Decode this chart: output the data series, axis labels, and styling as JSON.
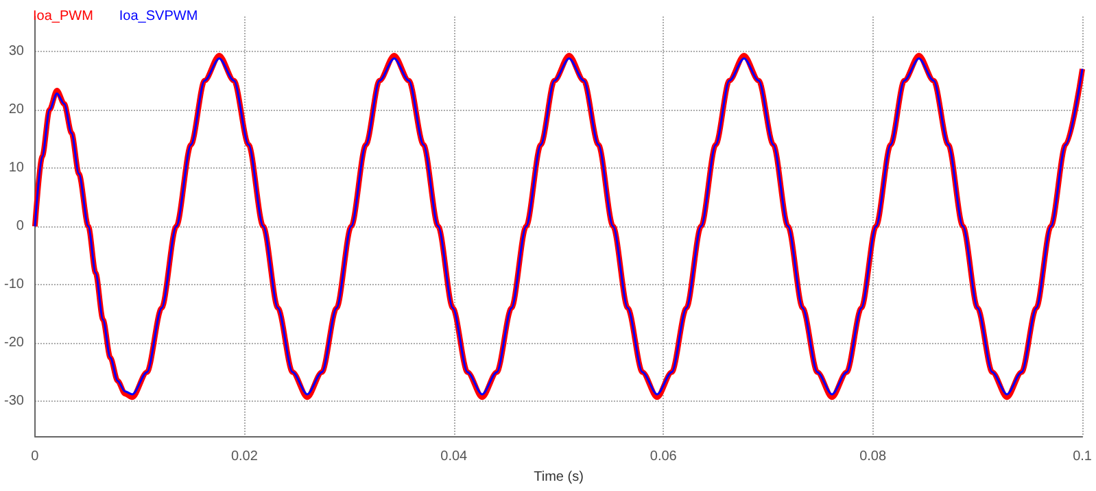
{
  "chart_data": {
    "type": "line",
    "xlabel": "Time (s)",
    "x": [
      0,
      0.0007,
      0.0014,
      0.0021,
      0.0028,
      0.0035,
      0.0042,
      0.0051,
      0.0058,
      0.0065,
      0.0072,
      0.0079,
      0.0086,
      0.0093,
      0.0107,
      0.0121,
      0.0135,
      0.0149,
      0.0162,
      0.0176,
      0.019,
      0.0204,
      0.0218,
      0.0232,
      0.0246,
      0.026,
      0.0274,
      0.0288,
      0.0302,
      0.0316,
      0.0329,
      0.0343,
      0.0357,
      0.0371,
      0.0385,
      0.0399,
      0.0413,
      0.0427,
      0.0441,
      0.0455,
      0.0469,
      0.0483,
      0.0496,
      0.051,
      0.0524,
      0.0538,
      0.0552,
      0.0566,
      0.058,
      0.0594,
      0.0608,
      0.0622,
      0.0636,
      0.065,
      0.0663,
      0.0677,
      0.0691,
      0.0705,
      0.0719,
      0.0733,
      0.0747,
      0.0761,
      0.0775,
      0.0789,
      0.0803,
      0.0817,
      0.083,
      0.0844,
      0.0858,
      0.0872,
      0.0886,
      0.09,
      0.0914,
      0.0928,
      0.0942,
      0.0956,
      0.097,
      0.0984,
      0.1
    ],
    "series": [
      {
        "name": "Ioa_PWM",
        "color": "#ff0000",
        "values": [
          0,
          12,
          20,
          23.3,
          21,
          16,
          9,
          0,
          -8,
          -16,
          -22.5,
          -26.5,
          -28.7,
          -29.3,
          -25,
          -14,
          0,
          14,
          25,
          29.3,
          25,
          14,
          0,
          -14,
          -25,
          -29.3,
          -25,
          -14,
          0,
          14,
          25,
          29.3,
          25,
          14,
          0,
          -14,
          -25,
          -29.3,
          -25,
          -14,
          0,
          14,
          25,
          29.3,
          25,
          14,
          0,
          -14,
          -25,
          -29.3,
          -25,
          -14,
          0,
          14,
          25,
          29.3,
          25,
          14,
          0,
          -14,
          -25,
          -29.3,
          -25,
          -14,
          0,
          14,
          25,
          29.3,
          25,
          14,
          0,
          -14,
          -25,
          -29.3,
          -25,
          -14,
          0,
          14,
          27
        ]
      },
      {
        "name": "Ioa_SVPWM",
        "color": "#0000ff",
        "values": [
          0,
          12,
          20,
          22.8,
          21,
          16,
          9,
          0,
          -8,
          -16,
          -22.5,
          -26.5,
          -28.3,
          -28.8,
          -25,
          -14,
          0,
          14,
          25,
          28.8,
          25,
          14,
          0,
          -14,
          -25,
          -28.8,
          -25,
          -14,
          0,
          14,
          25,
          28.8,
          25,
          14,
          0,
          -14,
          -25,
          -28.8,
          -25,
          -14,
          0,
          14,
          25,
          28.8,
          25,
          14,
          0,
          -14,
          -25,
          -28.8,
          -25,
          -14,
          0,
          14,
          25,
          28.8,
          25,
          14,
          0,
          -14,
          -25,
          -28.8,
          -25,
          -14,
          0,
          14,
          25,
          28.8,
          25,
          14,
          0,
          -14,
          -25,
          -28.8,
          -25,
          -14,
          0,
          14,
          27
        ]
      }
    ],
    "xlim": [
      0,
      0.1
    ],
    "xticks": [
      0,
      0.02,
      0.04,
      0.06,
      0.08,
      0.1
    ],
    "ylim": [
      -36,
      36
    ],
    "yticks": [
      -30,
      -20,
      -10,
      0,
      10,
      20,
      30
    ],
    "grid": true,
    "legend": "top left",
    "marker": "none",
    "line_style": "solid"
  }
}
